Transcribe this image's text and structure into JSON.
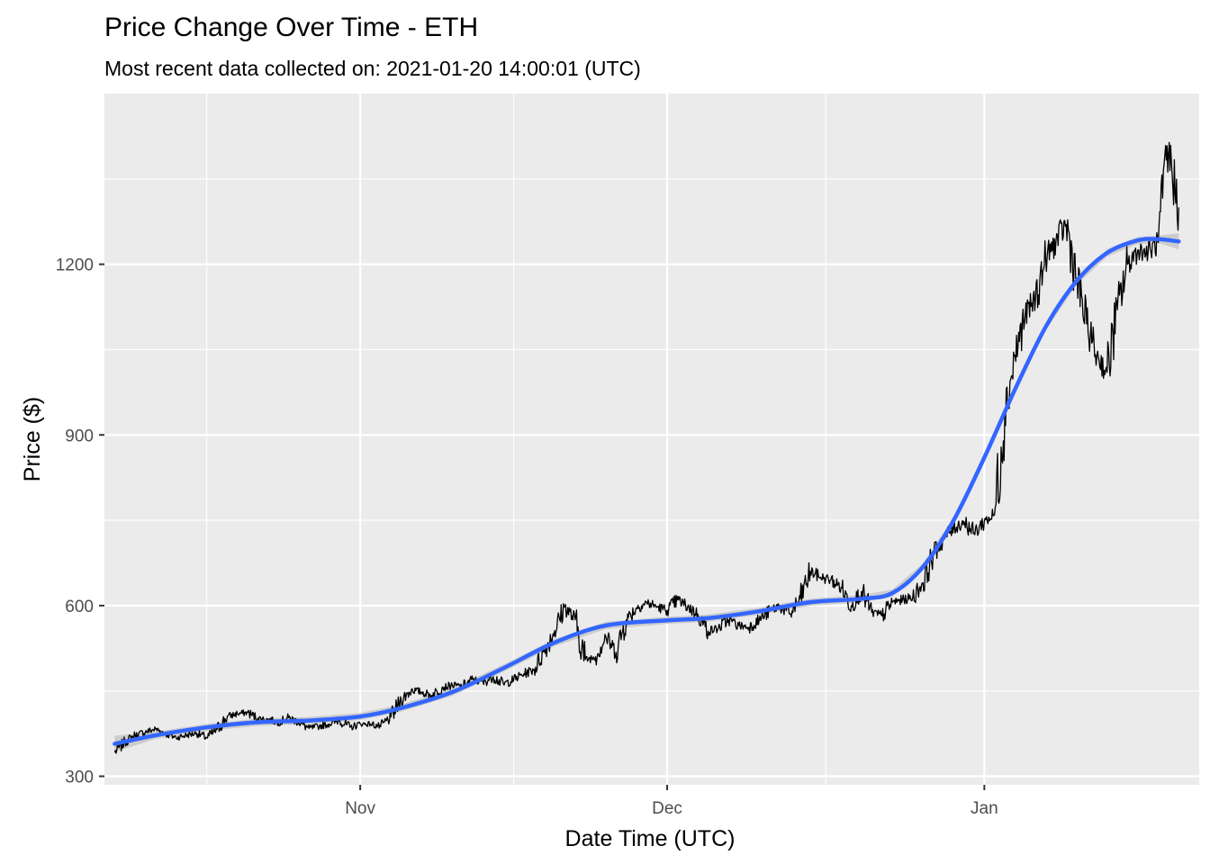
{
  "chart_data": {
    "type": "line",
    "title": "Price Change Over Time - ETH",
    "subtitle": "Most recent data collected on: 2021-01-20 14:00:01 (UTC)",
    "xlabel": "Date Time (UTC)",
    "ylabel": "Price ($)",
    "x_ticks": [
      {
        "date": "2020-11-01",
        "label": "Nov"
      },
      {
        "date": "2020-12-01",
        "label": "Dec"
      },
      {
        "date": "2021-01-01",
        "label": "Jan"
      }
    ],
    "y_ticks": [
      300,
      600,
      900,
      1200
    ],
    "xlim": [
      "2020-10-07",
      "2021-01-22"
    ],
    "ylim": [
      285,
      1500
    ],
    "grid": true,
    "colors": {
      "panel_background": "#ebebeb",
      "grid": "#ffffff",
      "price_line": "#000000",
      "smooth_line": "#3366ff",
      "confidence_band": "#c4c4c4"
    },
    "series": [
      {
        "role": "price",
        "x": [
          "2020-10-08",
          "2020-10-09",
          "2020-10-10",
          "2020-10-11",
          "2020-10-12",
          "2020-10-13",
          "2020-10-14",
          "2020-10-15",
          "2020-10-16",
          "2020-10-17",
          "2020-10-18",
          "2020-10-19",
          "2020-10-20",
          "2020-10-21",
          "2020-10-22",
          "2020-10-23",
          "2020-10-24",
          "2020-10-25",
          "2020-10-26",
          "2020-10-27",
          "2020-10-28",
          "2020-10-29",
          "2020-10-30",
          "2020-10-31",
          "2020-11-01",
          "2020-11-02",
          "2020-11-03",
          "2020-11-04",
          "2020-11-05",
          "2020-11-06",
          "2020-11-07",
          "2020-11-08",
          "2020-11-09",
          "2020-11-10",
          "2020-11-11",
          "2020-11-12",
          "2020-11-13",
          "2020-11-14",
          "2020-11-15",
          "2020-11-16",
          "2020-11-17",
          "2020-11-18",
          "2020-11-19",
          "2020-11-20",
          "2020-11-21",
          "2020-11-22",
          "2020-11-23",
          "2020-11-24",
          "2020-11-25",
          "2020-11-26",
          "2020-11-27",
          "2020-11-28",
          "2020-11-29",
          "2020-11-30",
          "2020-12-01",
          "2020-12-02",
          "2020-12-03",
          "2020-12-04",
          "2020-12-05",
          "2020-12-06",
          "2020-12-07",
          "2020-12-08",
          "2020-12-09",
          "2020-12-10",
          "2020-12-11",
          "2020-12-12",
          "2020-12-13",
          "2020-12-14",
          "2020-12-15",
          "2020-12-16",
          "2020-12-17",
          "2020-12-18",
          "2020-12-19",
          "2020-12-20",
          "2020-12-21",
          "2020-12-22",
          "2020-12-23",
          "2020-12-24",
          "2020-12-25",
          "2020-12-26",
          "2020-12-27",
          "2020-12-28",
          "2020-12-29",
          "2020-12-30",
          "2020-12-31",
          "2021-01-01",
          "2021-01-02",
          "2021-01-03",
          "2021-01-04",
          "2021-01-05",
          "2021-01-06",
          "2021-01-07",
          "2021-01-08",
          "2021-01-09",
          "2021-01-10",
          "2021-01-11",
          "2021-01-12",
          "2021-01-13",
          "2021-01-14",
          "2021-01-15",
          "2021-01-16",
          "2021-01-17",
          "2021-01-18",
          "2021-01-19",
          "2021-01-20"
        ],
        "y": [
          342,
          360,
          372,
          378,
          383,
          375,
          368,
          372,
          376,
          368,
          382,
          405,
          410,
          412,
          402,
          400,
          395,
          403,
          395,
          384,
          388,
          392,
          398,
          386,
          392,
          392,
          387,
          404,
          434,
          452,
          448,
          442,
          456,
          460,
          458,
          470,
          465,
          475,
          462,
          470,
          480,
          488,
          520,
          556,
          598,
          575,
          505,
          510,
          545,
          518,
          575,
          596,
          605,
          598,
          592,
          610,
          598,
          585,
          555,
          560,
          575,
          565,
          562,
          575,
          590,
          600,
          585,
          612,
          660,
          650,
          645,
          632,
          600,
          625,
          588,
          582,
          606,
          610,
          614,
          640,
          690,
          718,
          736,
          748,
          728,
          748,
          760,
          940,
          1040,
          1110,
          1140,
          1210,
          1240,
          1270,
          1175,
          1095,
          1040,
          1010,
          1120,
          1200,
          1225,
          1220,
          1238,
          1395,
          1300
        ],
        "line": "thin black"
      },
      {
        "role": "smooth",
        "x": [
          "2020-10-08",
          "2020-10-12",
          "2020-10-17",
          "2020-10-22",
          "2020-10-27",
          "2020-11-01",
          "2020-11-05",
          "2020-11-10",
          "2020-11-15",
          "2020-11-20",
          "2020-11-25",
          "2020-12-01",
          "2020-12-05",
          "2020-12-10",
          "2020-12-15",
          "2020-12-20",
          "2020-12-23",
          "2020-12-26",
          "2020-12-29",
          "2021-01-01",
          "2021-01-04",
          "2021-01-07",
          "2021-01-10",
          "2021-01-13",
          "2021-01-16",
          "2021-01-18",
          "2021-01-20"
        ],
        "y": [
          357,
          372,
          386,
          395,
          398,
          405,
          420,
          448,
          490,
          535,
          565,
          574,
          578,
          590,
          606,
          612,
          622,
          668,
          750,
          860,
          980,
          1090,
          1170,
          1220,
          1242,
          1244,
          1240
        ],
        "line": "thick blue with grey confidence band"
      }
    ]
  }
}
